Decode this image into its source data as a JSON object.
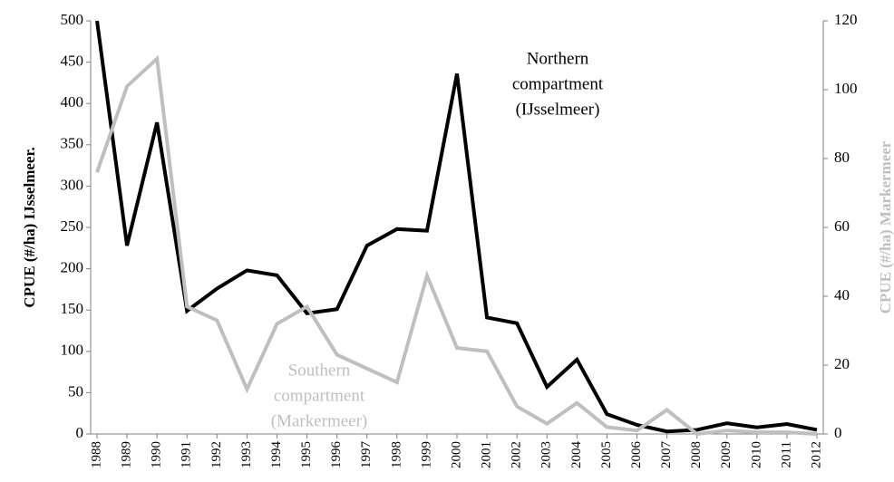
{
  "chart_data": {
    "type": "line",
    "categories": [
      "1988",
      "1989",
      "1990",
      "1991",
      "1992",
      "1993",
      "1994",
      "1995",
      "1996",
      "1997",
      "1998",
      "1999",
      "2000",
      "2001",
      "2002",
      "2003",
      "2004",
      "2005",
      "2006",
      "2007",
      "2008",
      "2009",
      "2010",
      "2011",
      "2012"
    ],
    "series": [
      {
        "color": "#000000",
        "axis": "y",
        "values": [
          500,
          228,
          377,
          149,
          176,
          198,
          192,
          146,
          151,
          228,
          248,
          246,
          436,
          141,
          134,
          57,
          90,
          24,
          11,
          3,
          5,
          13,
          8,
          12,
          5
        ]
      },
      {
        "color": "#bfbfbf",
        "axis": "y2",
        "values": [
          76,
          101,
          109,
          37,
          33,
          13,
          32,
          37,
          23,
          19,
          15,
          46,
          25,
          24,
          8,
          3,
          9,
          2,
          1,
          7,
          0,
          1,
          0.5,
          0.5,
          0
        ]
      }
    ],
    "ylabel": "CPUE (#/ha) IJsselmeer.",
    "y2label": "CPUE (#/ha) Markermeer",
    "y2label_color": "#bfbfbf",
    "ylim": [
      0,
      500
    ],
    "yticks": [
      0,
      50,
      100,
      150,
      200,
      250,
      300,
      350,
      400,
      450,
      500
    ],
    "y2lim": [
      0,
      120
    ],
    "y2ticks": [
      0,
      20,
      40,
      60,
      80,
      100,
      120
    ],
    "annotations": [
      {
        "lines": [
          "Northern",
          "compartment",
          "(IJsselmeer)"
        ],
        "color": "#000000"
      },
      {
        "lines": [
          "Southern",
          "compartment",
          "(Markermeer)"
        ],
        "color": "#bfbfbf"
      }
    ]
  }
}
